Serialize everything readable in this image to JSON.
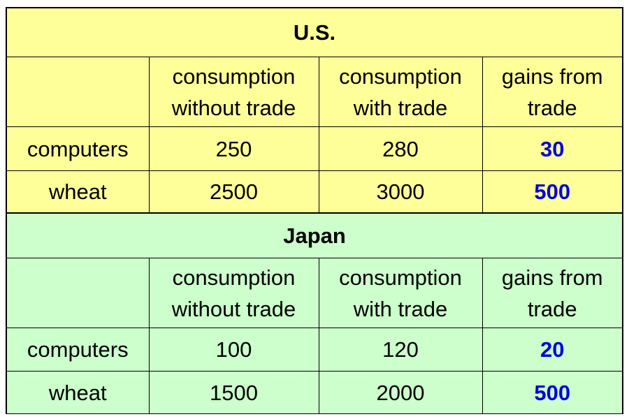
{
  "columns": {
    "col1": "consumption\nwithout trade",
    "col2": "consumption\nwith trade",
    "col3": "gains from\ntrade"
  },
  "tables": [
    {
      "title": "U.S.",
      "header": {
        "without_trade_l1": "consumption",
        "without_trade_l2": "without trade",
        "with_trade_l1": "consumption",
        "with_trade_l2": "with trade",
        "gains_l1": "gains from",
        "gains_l2": "trade"
      },
      "rows": [
        {
          "label": "computers",
          "without_trade": "250",
          "with_trade": "280",
          "gains": "30"
        },
        {
          "label": "wheat",
          "without_trade": "2500",
          "with_trade": "3000",
          "gains": "500"
        }
      ]
    },
    {
      "title": "Japan",
      "header": {
        "without_trade_l1": "consumption",
        "without_trade_l2": "without trade",
        "with_trade_l1": "consumption",
        "with_trade_l2": "with trade",
        "gains_l1": "gains from",
        "gains_l2": "trade"
      },
      "rows": [
        {
          "label": "computers",
          "without_trade": "100",
          "with_trade": "120",
          "gains": "20"
        },
        {
          "label": "wheat",
          "without_trade": "1500",
          "with_trade": "2000",
          "gains": "500"
        }
      ]
    }
  ],
  "colors": {
    "us_background": "#ffff99",
    "japan_background": "#ccffcc",
    "gains_text": "#0000dd",
    "border": "#000000"
  }
}
